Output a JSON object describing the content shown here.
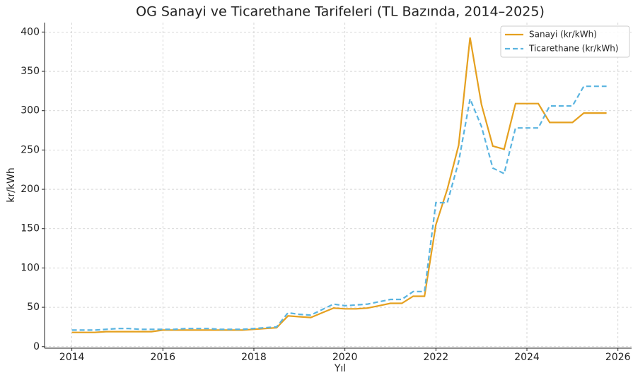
{
  "chart_data": {
    "type": "line",
    "title": "OG Sanayi ve Ticarethane Tarifeleri (TL Bazında, 2014–2025)",
    "xlabel": "Yıl",
    "ylabel": "kr/kWh",
    "x": [
      2014,
      2014.25,
      2014.5,
      2014.75,
      2015,
      2015.25,
      2015.5,
      2015.75,
      2016,
      2016.25,
      2016.5,
      2016.75,
      2017,
      2017.25,
      2017.5,
      2017.75,
      2018,
      2018.25,
      2018.5,
      2018.75,
      2019,
      2019.25,
      2019.5,
      2019.75,
      2020,
      2020.25,
      2020.5,
      2020.75,
      2021,
      2021.25,
      2021.5,
      2021.75,
      2022,
      2022.25,
      2022.5,
      2022.75,
      2023,
      2023.25,
      2023.5,
      2023.75,
      2024,
      2024.25,
      2024.5,
      2024.75,
      2025,
      2025.25,
      2025.5,
      2025.75
    ],
    "series": [
      {
        "name": "Sanayi (kr/kWh)",
        "color": "#e5a01f",
        "dash": false,
        "values": [
          18,
          18,
          18,
          19,
          19,
          19,
          19,
          19,
          21,
          21,
          21,
          21,
          21,
          21,
          21,
          21,
          22,
          23,
          24,
          39,
          38,
          37,
          43,
          49,
          48,
          48,
          49,
          52,
          55,
          55,
          64,
          64,
          155,
          200,
          256,
          393,
          308,
          255,
          251,
          309,
          309,
          309,
          285,
          285,
          285,
          297,
          297,
          297
        ]
      },
      {
        "name": "Ticarethane (kr/kWh)",
        "color": "#5ab4e0",
        "dash": true,
        "values": [
          21,
          21,
          21,
          22,
          23,
          23,
          22,
          22,
          22,
          22,
          23,
          23,
          23,
          22,
          22,
          22,
          23,
          24,
          25,
          43,
          41,
          40,
          47,
          54,
          52,
          53,
          54,
          57,
          60,
          60,
          70,
          70,
          183,
          183,
          235,
          315,
          280,
          227,
          220,
          278,
          278,
          278,
          306,
          306,
          306,
          331,
          331,
          331
        ]
      }
    ],
    "xlim": [
      2013.4,
      2026.3
    ],
    "xticks": [
      2014,
      2016,
      2018,
      2020,
      2022,
      2024,
      2026
    ],
    "ylim": [
      -2,
      412
    ],
    "yticks": [
      0,
      50,
      100,
      150,
      200,
      250,
      300,
      350,
      400
    ],
    "grid": true,
    "legend": "upper right"
  }
}
